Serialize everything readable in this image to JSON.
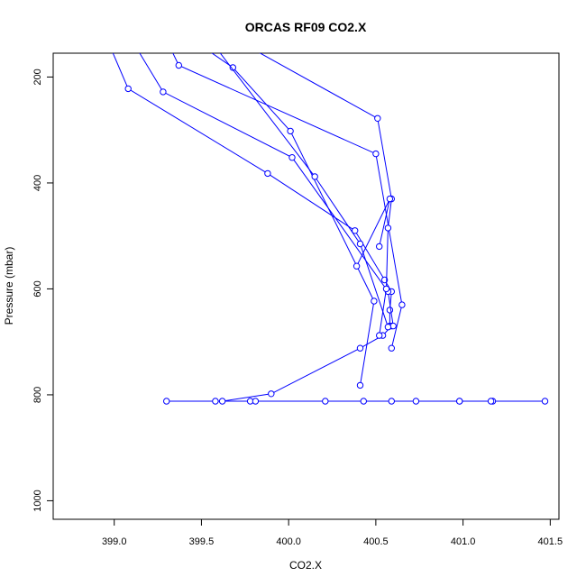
{
  "chart_data": {
    "type": "line",
    "title": "ORCAS RF09 CO2.X",
    "xlabel": "CO2.X",
    "ylabel": "Pressure (mbar)",
    "xlim": [
      398.65,
      401.55
    ],
    "ylim": [
      1035,
      155
    ],
    "y_reversed": true,
    "grid": false,
    "xticks": [
      399.0,
      399.5,
      400.0,
      400.5,
      401.0,
      401.5
    ],
    "xtick_labels": [
      "399.0",
      "399.5",
      "400.0",
      "400.5",
      "401.0",
      "401.5"
    ],
    "yticks": [
      200,
      400,
      600,
      800,
      1000
    ],
    "ytick_labels": [
      "200",
      "400",
      "600",
      "800",
      "1000"
    ],
    "series": [
      {
        "color": "#0000ff",
        "marker": "open-circle",
        "x": [
          398.96,
          399.08,
          399.88,
          400.38,
          400.55,
          400.59,
          400.58,
          400.58,
          400.59,
          400.54,
          400.41,
          399.9,
          399.62,
          399.3,
          401.47,
          399.58,
          400.21,
          401.17,
          400.73,
          399.78,
          401.16,
          400.59,
          399.81,
          400.98,
          400.43,
          400.98
        ],
        "y": [
          130,
          222,
          382,
          490,
          583,
          605,
          640,
          670,
          670,
          688,
          712,
          798,
          812,
          812,
          812,
          812,
          812,
          812,
          812,
          812,
          812,
          812,
          812,
          812,
          812,
          812
        ]
      },
      {
        "color": "#0000ff",
        "marker": "open-circle",
        "x": [
          399.1,
          399.28,
          400.02,
          400.57,
          400.6
        ],
        "y": [
          130,
          228,
          352,
          605,
          670
        ]
      },
      {
        "color": "#0000ff",
        "marker": "open-circle",
        "x": [
          399.3,
          399.37,
          400.5,
          400.65,
          400.59
        ],
        "y": [
          130,
          178,
          345,
          630,
          712
        ]
      },
      {
        "color": "#0000ff",
        "marker": "open-circle",
        "x": [
          399.45,
          399.68,
          400.01,
          400.49,
          400.41
        ],
        "y": [
          130,
          182,
          302,
          623,
          782
        ]
      },
      {
        "color": "#0000ff",
        "marker": "open-circle",
        "x": [
          399.7,
          400.51,
          400.59,
          400.57,
          400.56,
          400.52
        ],
        "y": [
          130,
          278,
          430,
          485,
          600,
          688
        ]
      },
      {
        "color": "#0000ff",
        "marker": "open-circle",
        "x": [
          399.55,
          400.15,
          400.41,
          400.57
        ],
        "y": [
          130,
          388,
          515,
          672
        ]
      },
      {
        "color": "#0000ff",
        "marker": "open-circle",
        "x": [
          400.39,
          400.58,
          400.52
        ],
        "y": [
          557,
          430,
          520
        ]
      }
    ]
  }
}
